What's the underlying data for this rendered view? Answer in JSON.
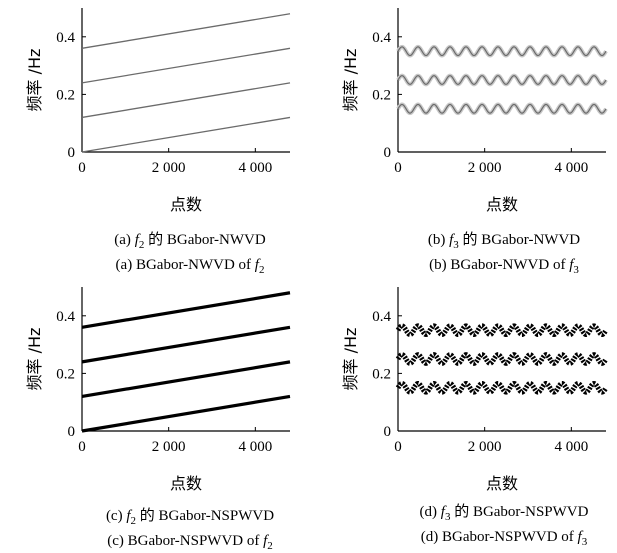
{
  "chart_data": [
    {
      "type": "line",
      "style": "thin",
      "caption_cn": [
        "(a) ",
        "f",
        "2",
        " 的 BGabor-NWVD"
      ],
      "caption_en": [
        "(a) BGabor-NWVD of ",
        "f",
        "2"
      ],
      "xlabel": "点数",
      "ylabel": "频率 /Hz",
      "xlim": [
        0,
        4800
      ],
      "ylim": [
        0,
        0.5
      ],
      "xticks": [
        0,
        2000,
        4000
      ],
      "xticklabels": [
        "0",
        "2 000",
        "4 000"
      ],
      "yticks": [
        0,
        0.2,
        0.4
      ],
      "yticklabels": [
        "0",
        "0.2",
        "0.4"
      ],
      "series": [
        {
          "x": [
            0,
            4800
          ],
          "y": [
            0.0,
            0.12
          ]
        },
        {
          "x": [
            0,
            4800
          ],
          "y": [
            0.12,
            0.24
          ]
        },
        {
          "x": [
            0,
            4800
          ],
          "y": [
            0.24,
            0.36
          ]
        },
        {
          "x": [
            0,
            4800
          ],
          "y": [
            0.36,
            0.48
          ]
        }
      ]
    },
    {
      "type": "line",
      "style": "thin-wave",
      "caption_cn": [
        "(b) ",
        "f",
        "3",
        " 的 BGabor-NWVD"
      ],
      "caption_en": [
        "(b) BGabor-NWVD of ",
        "f",
        "3"
      ],
      "xlabel": "点数",
      "ylabel": "频率 /Hz",
      "xlim": [
        0,
        4800
      ],
      "ylim": [
        0,
        0.5
      ],
      "xticks": [
        0,
        2000,
        4000
      ],
      "xticklabels": [
        "0",
        "2 000",
        "4 000"
      ],
      "yticks": [
        0,
        0.2,
        0.4
      ],
      "yticklabels": [
        "0",
        "0.2",
        "0.4"
      ],
      "series": [
        {
          "center": 0.15,
          "amplitude": 0.015,
          "cycles": 13
        },
        {
          "center": 0.25,
          "amplitude": 0.015,
          "cycles": 13
        },
        {
          "center": 0.35,
          "amplitude": 0.015,
          "cycles": 13
        }
      ]
    },
    {
      "type": "line",
      "style": "thick",
      "caption_cn": [
        "(c) ",
        "f",
        "2",
        " 的 BGabor-NSPWVD"
      ],
      "caption_en": [
        "(c) BGabor-NSPWVD of ",
        "f",
        "2"
      ],
      "xlabel": "点数",
      "ylabel": "频率 /Hz",
      "xlim": [
        0,
        4800
      ],
      "ylim": [
        0,
        0.5
      ],
      "xticks": [
        0,
        2000,
        4000
      ],
      "xticklabels": [
        "0",
        "2 000",
        "4 000"
      ],
      "yticks": [
        0,
        0.2,
        0.4
      ],
      "yticklabels": [
        "0",
        "0.2",
        "0.4"
      ],
      "series": [
        {
          "x": [
            0,
            4800
          ],
          "y": [
            0.0,
            0.12
          ]
        },
        {
          "x": [
            0,
            4800
          ],
          "y": [
            0.12,
            0.24
          ]
        },
        {
          "x": [
            0,
            4800
          ],
          "y": [
            0.24,
            0.36
          ]
        },
        {
          "x": [
            0,
            4800
          ],
          "y": [
            0.36,
            0.48
          ]
        }
      ]
    },
    {
      "type": "line",
      "style": "thick-wave",
      "caption_cn": [
        "(d) ",
        "f",
        "3",
        " 的 BGabor-NSPWVD"
      ],
      "caption_en": [
        "(d) BGabor-NSPWVD of ",
        "f",
        "3"
      ],
      "xlabel": "点数",
      "ylabel": "频率 /Hz",
      "xlim": [
        0,
        4800
      ],
      "ylim": [
        0,
        0.5
      ],
      "xticks": [
        0,
        2000,
        4000
      ],
      "xticklabels": [
        "0",
        "2 000",
        "4 000"
      ],
      "yticks": [
        0,
        0.2,
        0.4
      ],
      "yticklabels": [
        "0",
        "0.2",
        "0.4"
      ],
      "series": [
        {
          "center": 0.15,
          "amplitude": 0.015,
          "cycles": 13
        },
        {
          "center": 0.25,
          "amplitude": 0.015,
          "cycles": 13
        },
        {
          "center": 0.35,
          "amplitude": 0.015,
          "cycles": 13
        }
      ]
    }
  ],
  "colors": {
    "line_thin": "#6b6b6b",
    "line_thick": "#000000",
    "axis": "#000000"
  }
}
